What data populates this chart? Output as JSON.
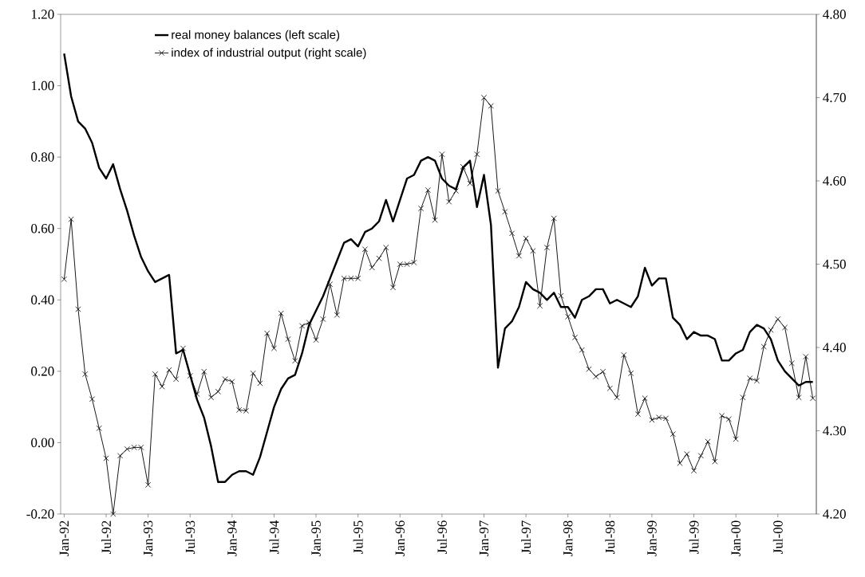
{
  "chart_data": {
    "type": "line",
    "categories": [
      "Jan-92",
      null,
      null,
      null,
      null,
      null,
      "Jul-92",
      null,
      null,
      null,
      null,
      null,
      "Jan-93",
      null,
      null,
      null,
      null,
      null,
      "Jul-93",
      null,
      null,
      null,
      null,
      null,
      "Jan-94",
      null,
      null,
      null,
      null,
      null,
      "Jul-94",
      null,
      null,
      null,
      null,
      null,
      "Jan-95",
      null,
      null,
      null,
      null,
      null,
      "Jul-95",
      null,
      null,
      null,
      null,
      null,
      "Jan-96",
      null,
      null,
      null,
      null,
      null,
      "Jul-96",
      null,
      null,
      null,
      null,
      null,
      "Jan-97",
      null,
      null,
      null,
      null,
      null,
      "Jul-97",
      null,
      null,
      null,
      null,
      null,
      "Jan-98",
      null,
      null,
      null,
      null,
      null,
      "Jul-98",
      null,
      null,
      null,
      null,
      null,
      "Jan-99",
      null,
      null,
      null,
      null,
      null,
      "Jul-99",
      null,
      null,
      null,
      null,
      null,
      "Jan-00",
      null,
      null,
      null,
      null,
      null,
      "Jul-00",
      null,
      null,
      null,
      null,
      null
    ],
    "series": [
      {
        "name": "real money balances (left scale)",
        "color": "#000000",
        "marker": "none",
        "values": [
          1.09,
          0.97,
          0.9,
          0.88,
          0.84,
          0.77,
          0.74,
          0.78,
          0.71,
          0.65,
          0.58,
          0.52,
          0.48,
          0.45,
          0.46,
          0.47,
          0.25,
          0.26,
          0.19,
          0.12,
          0.07,
          -0.01,
          -0.11,
          -0.11,
          -0.09,
          -0.08,
          -0.08,
          -0.09,
          -0.04,
          0.03,
          0.1,
          0.15,
          0.18,
          0.19,
          0.25,
          0.33,
          0.37,
          0.41,
          0.46,
          0.51,
          0.56,
          0.57,
          0.55,
          0.59,
          0.6,
          0.62,
          0.68,
          0.62,
          0.68,
          0.74,
          0.75,
          0.79,
          0.8,
          0.79,
          0.74,
          0.72,
          0.71,
          0.77,
          0.79,
          0.66,
          0.75,
          0.61,
          0.21,
          0.32,
          0.34,
          0.38,
          0.45,
          0.43,
          0.42,
          0.4,
          0.42,
          0.38,
          0.38,
          0.35,
          0.4,
          0.41,
          0.43,
          0.43,
          0.39,
          0.4,
          0.39,
          0.38,
          0.41,
          0.49,
          0.44,
          0.46,
          0.46,
          0.35,
          0.33,
          0.29,
          0.31,
          0.3,
          0.3,
          0.29,
          0.23,
          0.23,
          0.25,
          0.26,
          0.31,
          0.33,
          0.32,
          0.29,
          0.23,
          0.2,
          0.18,
          0.16,
          0.17,
          0.17
        ]
      },
      {
        "name": "index of industrial output (right scale)",
        "color": "#000000",
        "marker": "cross",
        "axis": "y2",
        "values": [
          4.482,
          4.554,
          4.446,
          4.368,
          4.338,
          4.303,
          4.267,
          4.2,
          4.27,
          4.278,
          4.28,
          4.28,
          4.235,
          4.368,
          4.353,
          4.373,
          4.362,
          4.399,
          4.366,
          4.344,
          4.371,
          4.34,
          4.347,
          4.362,
          4.359,
          4.325,
          4.324,
          4.369,
          4.357,
          4.417,
          4.399,
          4.441,
          4.41,
          4.384,
          4.426,
          4.43,
          4.409,
          4.434,
          4.476,
          4.439,
          4.483,
          4.483,
          4.483,
          4.518,
          4.496,
          4.507,
          4.52,
          4.472,
          4.5,
          4.5,
          4.502,
          4.567,
          4.589,
          4.553,
          4.632,
          4.575,
          4.588,
          4.617,
          4.597,
          4.632,
          4.7,
          4.69,
          4.588,
          4.563,
          4.537,
          4.51,
          4.531,
          4.516,
          4.45,
          4.52,
          4.555,
          4.462,
          4.437,
          4.412,
          4.397,
          4.374,
          4.365,
          4.371,
          4.351,
          4.34,
          4.391,
          4.369,
          4.32,
          4.339,
          4.313,
          4.316,
          4.315,
          4.296,
          4.261,
          4.272,
          4.252,
          4.27,
          4.287,
          4.263,
          4.318,
          4.314,
          4.29,
          4.34,
          4.363,
          4.36,
          4.401,
          4.421,
          4.434,
          4.424,
          4.381,
          4.34,
          4.389,
          4.339
        ]
      }
    ],
    "ylim": [
      -0.2,
      1.2
    ],
    "yticks": [
      {
        "value": -0.2,
        "label": "-0.20"
      },
      {
        "value": 0,
        "label": "0.00"
      },
      {
        "value": 0.2,
        "label": "0.20"
      },
      {
        "value": 0.4,
        "label": "0.40"
      },
      {
        "value": 0.6,
        "label": "0.60"
      },
      {
        "value": 0.8,
        "label": "0.80"
      },
      {
        "value": 1.0,
        "label": "1.00"
      },
      {
        "value": 1.2,
        "label": "1.20"
      }
    ],
    "y2lim": [
      4.2,
      4.8
    ],
    "y2ticks": [
      {
        "value": 4.2,
        "label": "4.20"
      },
      {
        "value": 4.3,
        "label": "4.30"
      },
      {
        "value": 4.4,
        "label": "4.40"
      },
      {
        "value": 4.5,
        "label": "4.50"
      },
      {
        "value": 4.6,
        "label": "4.60"
      },
      {
        "value": 4.7,
        "label": "4.70"
      },
      {
        "value": 4.8,
        "label": "4.80"
      }
    ],
    "grid": false,
    "legend": "top left"
  }
}
